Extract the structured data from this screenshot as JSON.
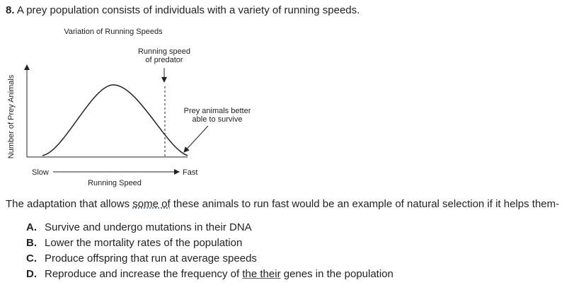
{
  "question": {
    "number": "8.",
    "text": "A prey population consists of individuals with a variety of running speeds."
  },
  "figure": {
    "title": "Variation of Running Speeds",
    "y_axis_label": "Number of Prey Animals",
    "x_axis_label": "Running Speed",
    "x_start": "Slow",
    "x_end": "Fast",
    "predator_label": [
      "Running speed",
      "of predator"
    ],
    "survive_label": [
      "Prey animals better",
      "able to survive"
    ]
  },
  "prompt": [
    "The adaptation that allows ",
    "some of",
    " these animals to run fast would be an example of natural selection if it helps them-"
  ],
  "options": [
    {
      "letter": "A.",
      "text": [
        "Survive and undergo mutations in their DNA"
      ]
    },
    {
      "letter": "B.",
      "text": [
        "Lower the mortality rates of the population"
      ]
    },
    {
      "letter": "C.",
      "text": [
        "Produce offspring that run at average speeds"
      ]
    },
    {
      "letter": "D.",
      "text": [
        "Reproduce and increase the frequency of ",
        "the their",
        " genes in the population"
      ]
    }
  ]
}
